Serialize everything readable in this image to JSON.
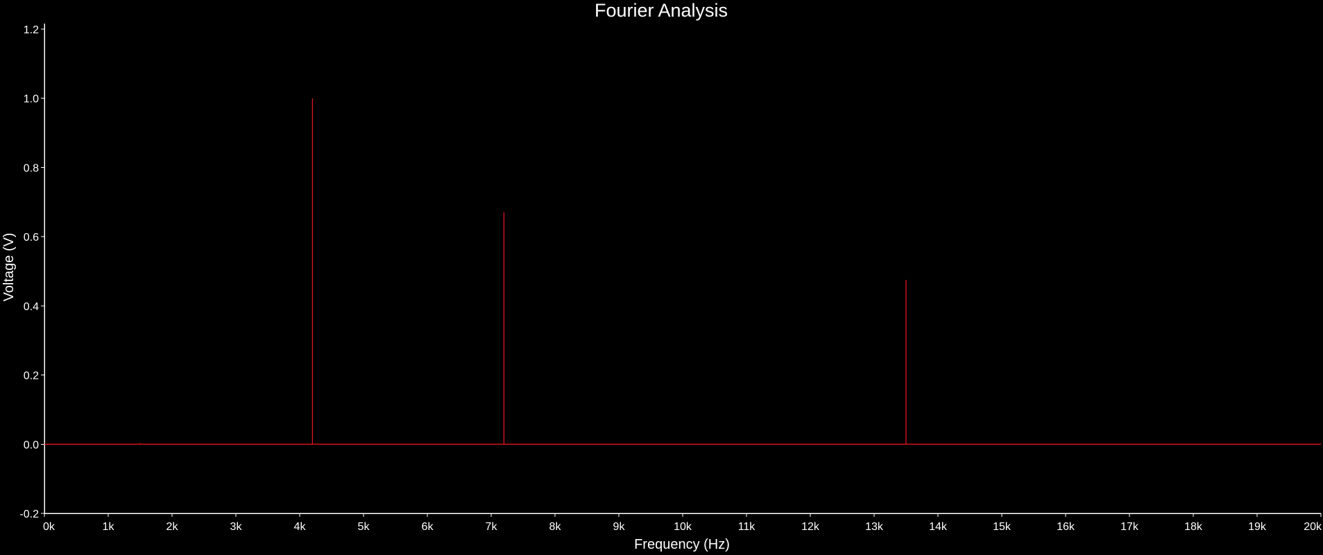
{
  "chart_data": {
    "type": "line",
    "title": "Fourier Analysis",
    "xlabel": "Frequency (Hz)",
    "ylabel": "Voltage (V)",
    "xlim": [
      0,
      20000
    ],
    "ylim": [
      -0.2,
      1.2
    ],
    "x_ticks": [
      0,
      1000,
      2000,
      3000,
      4000,
      5000,
      6000,
      7000,
      8000,
      9000,
      10000,
      11000,
      12000,
      13000,
      14000,
      15000,
      16000,
      17000,
      18000,
      19000,
      20000
    ],
    "x_tick_labels": [
      "0k",
      "1k",
      "2k",
      "3k",
      "4k",
      "5k",
      "6k",
      "7k",
      "8k",
      "9k",
      "10k",
      "11k",
      "12k",
      "13k",
      "14k",
      "15k",
      "16k",
      "17k",
      "18k",
      "19k",
      "20k"
    ],
    "y_ticks": [
      -0.2,
      0.0,
      0.2,
      0.4,
      0.6,
      0.8,
      1.0,
      1.2
    ],
    "y_tick_labels": [
      "-0.2",
      "0.0",
      "0.2",
      "0.4",
      "0.6",
      "0.8",
      "1.0",
      "1.2"
    ],
    "grid": false,
    "background": "#000000",
    "series": [
      {
        "color": "#e0141e",
        "x": [
          0,
          1500,
          1500,
          1500,
          4200,
          4200,
          4200,
          7200,
          7200,
          7200,
          13500,
          13500,
          13500,
          20000
        ],
        "y": [
          0.0,
          0.0,
          0.003,
          0.0,
          0.0,
          1.0,
          0.0,
          0.0,
          0.67,
          0.0,
          0.0,
          0.475,
          0.0,
          0.0
        ]
      }
    ]
  }
}
